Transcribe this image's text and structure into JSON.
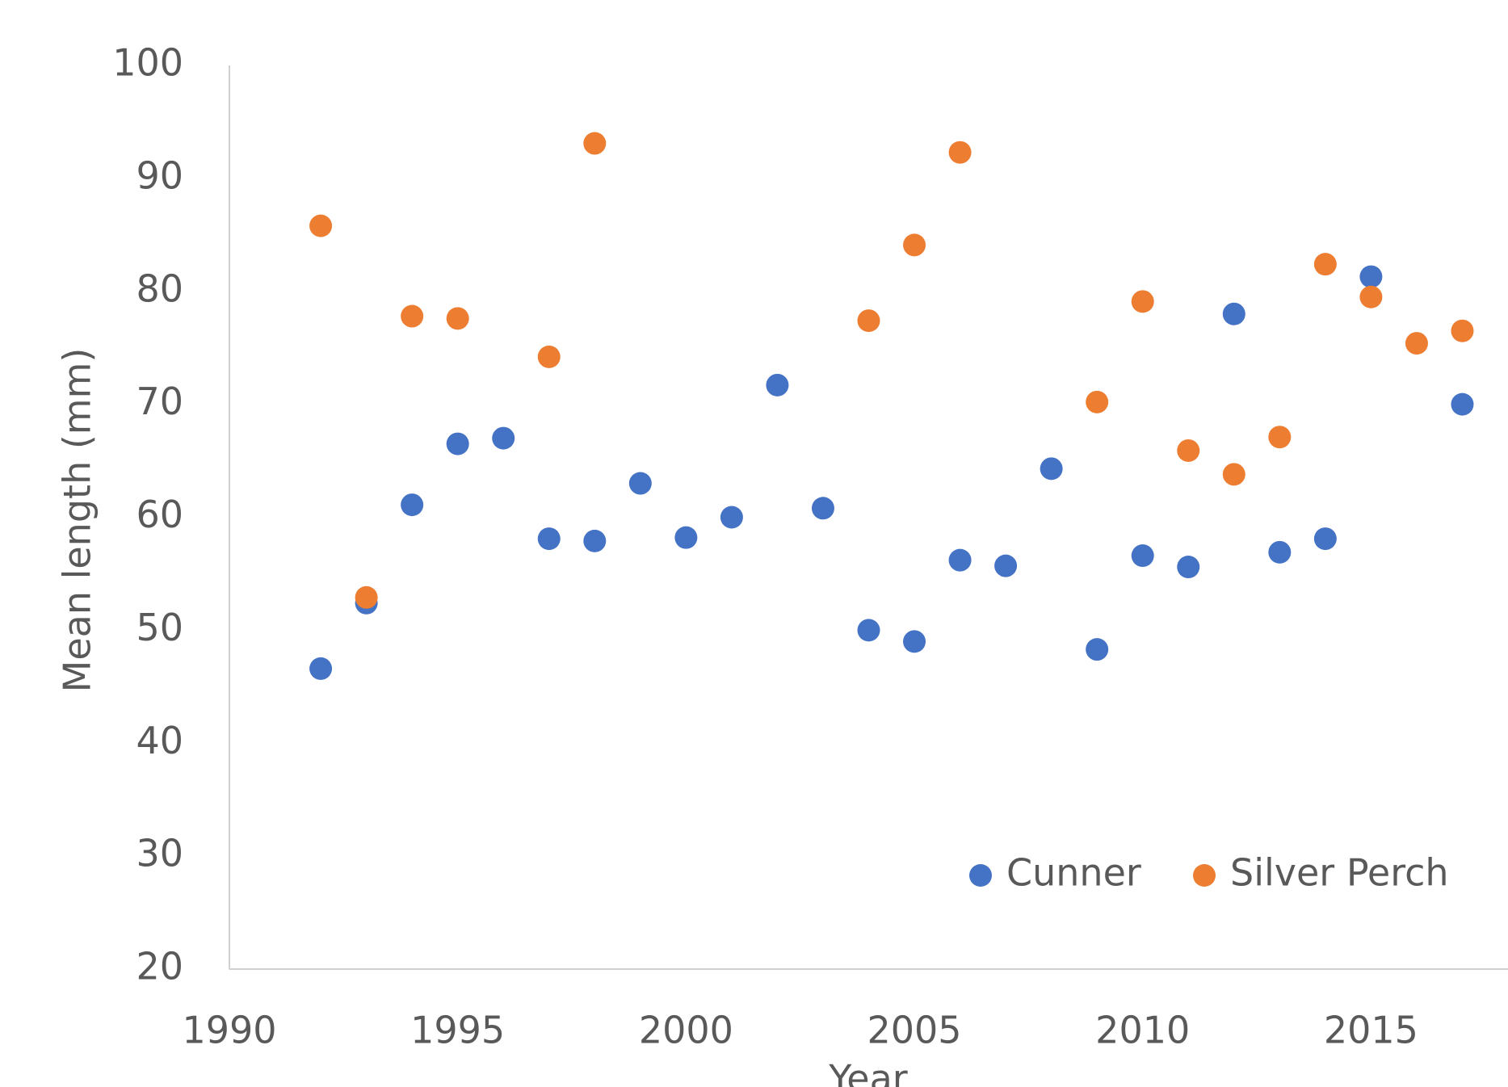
{
  "chart_data": {
    "type": "scatter",
    "x_label": "Year",
    "y_label": "Mean length (mm)",
    "x": [
      1992,
      1993,
      1994,
      1995,
      1996,
      1997,
      1998,
      1999,
      2000,
      2001,
      2002,
      2003,
      2004,
      2005,
      2006,
      2007,
      2008,
      2009,
      2010,
      2011,
      2012,
      2013,
      2014,
      2015,
      2016,
      2017
    ],
    "series": [
      {
        "name": "Cunner",
        "color": "#4472c4",
        "values": [
          46.6,
          52.4,
          61.1,
          66.5,
          67.0,
          58.1,
          57.9,
          63.0,
          58.2,
          60.0,
          71.7,
          60.8,
          50.0,
          49.0,
          56.2,
          55.7,
          64.3,
          48.3,
          56.6,
          55.6,
          78.0,
          56.9,
          58.1,
          81.3,
          null,
          70.0
        ]
      },
      {
        "name": "Silver Perch",
        "color": "#ed7d31",
        "values": [
          85.8,
          52.9,
          77.8,
          77.6,
          null,
          74.2,
          93.1,
          null,
          null,
          null,
          null,
          null,
          77.4,
          84.1,
          92.3,
          null,
          null,
          70.2,
          79.1,
          65.9,
          63.8,
          67.1,
          82.4,
          79.5,
          75.4,
          76.5
        ]
      }
    ],
    "xlim": [
      1990,
      2018
    ],
    "xticks": [
      1990,
      1995,
      2000,
      2005,
      2010,
      2015
    ],
    "ylim": [
      20,
      100
    ],
    "yticks": [
      20,
      30,
      40,
      50,
      60,
      70,
      80,
      90,
      100
    ],
    "grid": false,
    "legend": "lower right"
  }
}
